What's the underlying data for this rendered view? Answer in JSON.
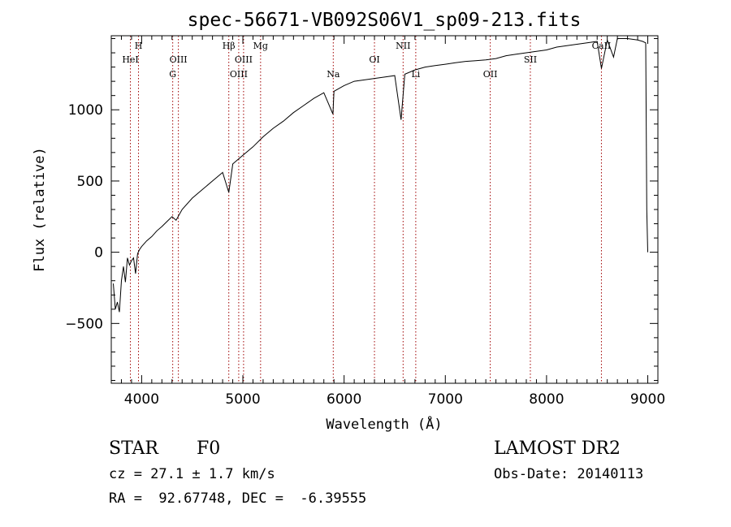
{
  "chart_data": {
    "type": "line",
    "title": "spec-56671-VB092S06V1_sp09-213.fits",
    "xlabel": "Wavelength (Å)",
    "ylabel": "Flux (relative)",
    "xlim": [
      3700,
      9100
    ],
    "ylim": [
      -920,
      1520
    ],
    "grid": false,
    "x_ticks": [
      4000,
      5000,
      6000,
      7000,
      8000,
      9000
    ],
    "y_ticks": [
      -500,
      0,
      500,
      1000
    ],
    "x_minor_step": 100,
    "y_minor_step": 100,
    "line_color": "#000000",
    "marker_color": "#a00000",
    "series": [
      {
        "x": [
          3720,
          3740,
          3760,
          3780,
          3800,
          3820,
          3840,
          3860,
          3880,
          3900,
          3920,
          3940,
          3960,
          3980,
          4000,
          4050,
          4100,
          4150,
          4200,
          4250,
          4300,
          4340,
          4400,
          4500,
          4600,
          4700,
          4800,
          4861,
          4900,
          5000,
          5100,
          5200,
          5300,
          5400,
          5500,
          5600,
          5700,
          5800,
          5890,
          5900,
          6000,
          6100,
          6200,
          6300,
          6400,
          6500,
          6563,
          6600,
          6700,
          6800,
          6900,
          7000,
          7100,
          7200,
          7300,
          7400,
          7500,
          7600,
          7700,
          7800,
          7900,
          8000,
          8100,
          8200,
          8300,
          8400,
          8500,
          8542,
          8600,
          8662,
          8700,
          8800,
          8900,
          8950,
          8980,
          8990,
          9000
        ],
        "y": [
          -220,
          -400,
          -350,
          -420,
          -200,
          -100,
          -210,
          -40,
          -90,
          -60,
          -40,
          -150,
          -10,
          20,
          40,
          80,
          110,
          150,
          180,
          215,
          250,
          225,
          300,
          380,
          440,
          500,
          560,
          420,
          620,
          680,
          740,
          810,
          870,
          920,
          980,
          1030,
          1080,
          1120,
          970,
          1130,
          1170,
          1200,
          1210,
          1220,
          1230,
          1240,
          930,
          1250,
          1280,
          1300,
          1310,
          1320,
          1330,
          1340,
          1345,
          1350,
          1360,
          1380,
          1390,
          1400,
          1410,
          1420,
          1440,
          1450,
          1460,
          1470,
          1480,
          1290,
          1490,
          1370,
          1500,
          1500,
          1490,
          1480,
          1470,
          300,
          0
        ]
      }
    ],
    "line_markers": [
      {
        "x": 3889,
        "label": "HeI",
        "row": 2
      },
      {
        "x": 3969,
        "label": "H",
        "row": 1
      },
      {
        "x": 4307,
        "label": "G",
        "row": 3
      },
      {
        "x": 4363,
        "label": "OIII",
        "row": 2
      },
      {
        "x": 4861,
        "label": "Hβ",
        "row": 1
      },
      {
        "x": 4959,
        "label": "OIII",
        "row": 3
      },
      {
        "x": 5007,
        "label": "OIII",
        "row": 2
      },
      {
        "x": 5175,
        "label": "Mg",
        "row": 1
      },
      {
        "x": 5893,
        "label": "Na",
        "row": 3
      },
      {
        "x": 6300,
        "label": "OI",
        "row": 2
      },
      {
        "x": 6583,
        "label": "NII",
        "row": 1
      },
      {
        "x": 6708,
        "label": "Li",
        "row": 3
      },
      {
        "x": 7444,
        "label": "OII",
        "row": 3
      },
      {
        "x": 7840,
        "label": "SII",
        "row": 2
      },
      {
        "x": 8542,
        "label": "CaII",
        "row": 1
      }
    ]
  },
  "info": {
    "object_class": "STAR",
    "subclass": "F0",
    "redshift_line": "cz = 27.1 ± 1.7 km/s",
    "coords_line": "RA =  92.67748, DEC =  -6.39555",
    "survey": "LAMOST DR2",
    "obs_date_line": "Obs-Date: 20140113"
  }
}
